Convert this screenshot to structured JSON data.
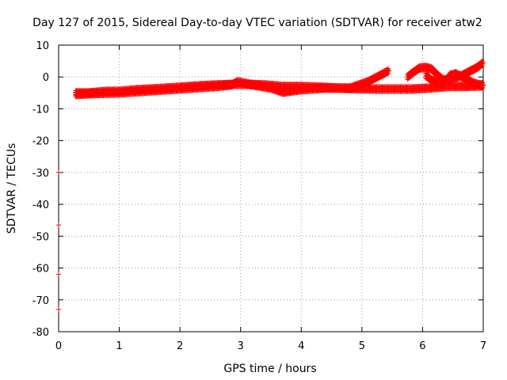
{
  "chart_data": {
    "type": "scatter",
    "title": "Day 127 of 2015, Sidereal Day-to-day VTEC variation (SDTVAR) for receiver atw2",
    "xlabel": "GPS time / hours",
    "ylabel": "SDTVAR / TECUs",
    "xlim": [
      0,
      7
    ],
    "ylim": [
      -80,
      10
    ],
    "xticks": [
      "0",
      "1",
      "2",
      "3",
      "4",
      "5",
      "6",
      "7"
    ],
    "yticks": [
      "10",
      "0",
      "-10",
      "-20",
      "-30",
      "-40",
      "-50",
      "-60",
      "-70",
      "-80"
    ],
    "grid": true,
    "marker": "+",
    "color": "#ff0000",
    "series": [
      {
        "x": [
          0.28,
          0.5,
          0.8,
          1.0,
          1.3,
          1.6,
          2.0,
          2.3,
          2.6,
          2.9,
          3.1,
          3.4,
          3.7,
          4.0,
          4.3,
          4.6,
          4.9,
          5.2,
          5.5,
          5.8,
          6.1,
          6.4,
          6.7,
          7.0
        ],
        "y": [
          -5.0,
          -5.0,
          -4.5,
          -4.5,
          -4.0,
          -3.7,
          -3.2,
          -2.8,
          -2.5,
          -2.3,
          -2.3,
          -2.5,
          -3.0,
          -3.0,
          -3.2,
          -3.5,
          -3.7,
          -3.8,
          -3.8,
          -3.8,
          -3.5,
          -3.0,
          -3.0,
          -2.8
        ]
      },
      {
        "x": [
          0.28,
          0.6,
          1.0,
          1.4,
          1.8,
          2.2,
          2.6,
          2.85,
          2.95,
          3.2,
          3.5,
          3.7,
          4.0,
          4.4,
          4.8,
          5.1,
          5.3,
          5.45
        ],
        "y": [
          -5.5,
          -5.2,
          -5.0,
          -4.5,
          -4.0,
          -3.5,
          -3.0,
          -2.5,
          -1.5,
          -2.5,
          -3.5,
          -4.8,
          -4.0,
          -3.5,
          -3.5,
          -1.5,
          0.5,
          2.0
        ]
      },
      {
        "x": [
          5.75,
          5.85,
          5.95,
          6.05,
          6.15,
          6.25,
          6.35,
          6.5,
          6.65,
          6.8,
          6.9,
          7.0
        ],
        "y": [
          0.0,
          1.5,
          2.8,
          3.0,
          2.5,
          0.5,
          -1.0,
          -0.5,
          0.5,
          2.0,
          3.0,
          4.5
        ]
      },
      {
        "x": [
          6.05,
          6.15,
          6.25,
          6.35,
          6.45,
          6.55,
          6.65,
          6.75,
          6.85,
          6.95,
          7.0
        ],
        "y": [
          0.5,
          -1.0,
          -1.8,
          -2.0,
          0.5,
          1.0,
          0.0,
          -1.0,
          -2.0,
          -2.5,
          -2.5
        ]
      },
      {
        "x": [
          0.0,
          0.0,
          0.0,
          0.0
        ],
        "y": [
          -30.0,
          -46.5,
          -62.0,
          -73.0
        ]
      }
    ]
  }
}
